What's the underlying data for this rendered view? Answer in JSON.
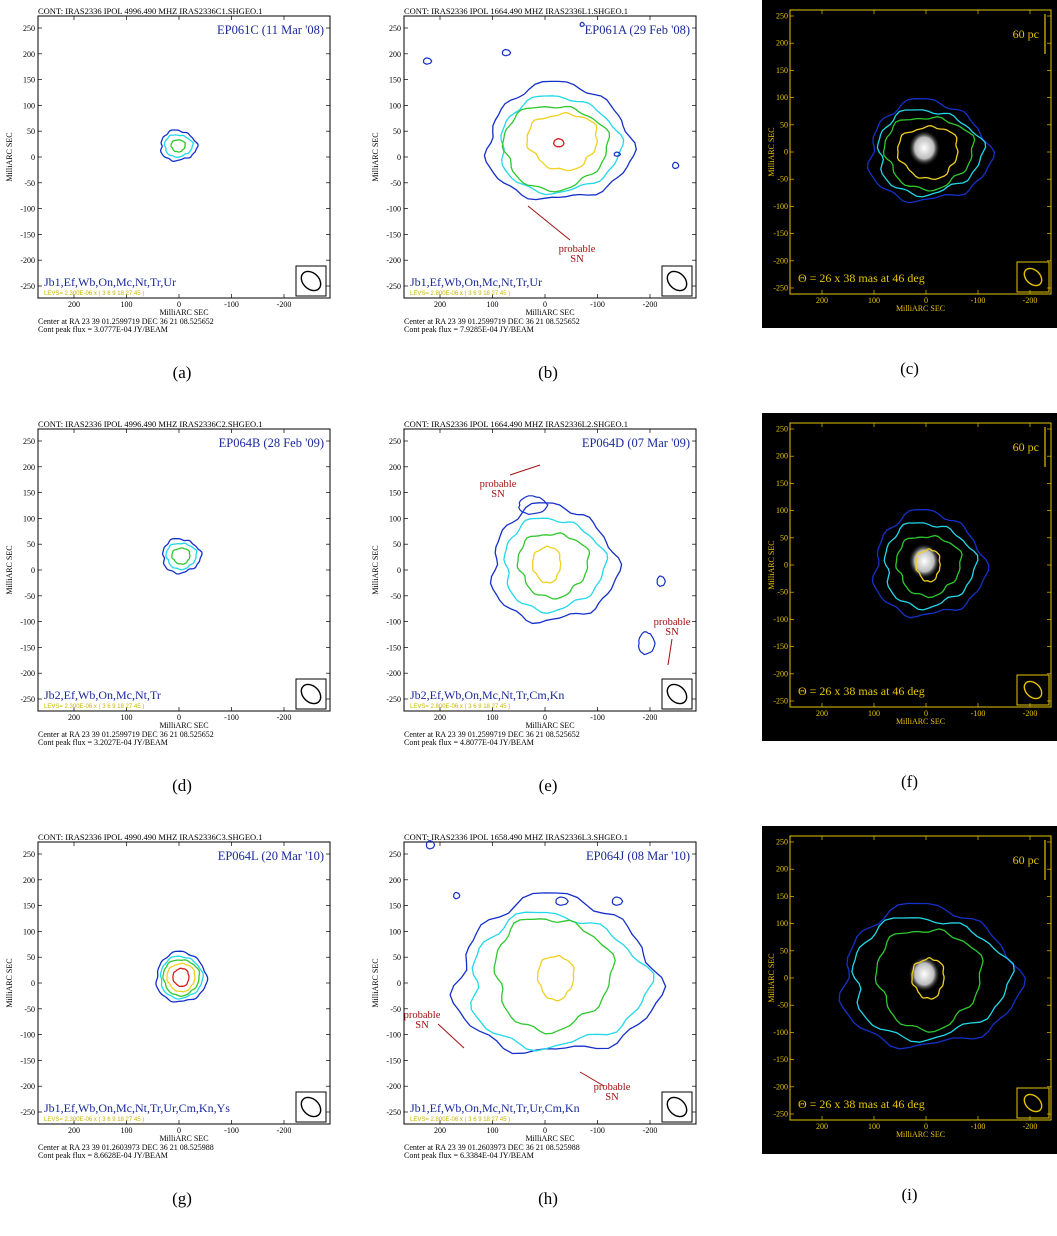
{
  "colors": {
    "contour_blue": "#1530c8",
    "contour_cyan": "#22d8e8",
    "contour_green": "#2ec82e",
    "contour_yellow": "#f0d020",
    "contour_red": "#d81c1c",
    "label_blue": "#1a2a9a",
    "annotation_red": "#a01010",
    "dark_frame": "#e6c300"
  },
  "common": {
    "xlabel": "MilliARC SEC",
    "ylabel": "MilliARC SEC",
    "xticks": [
      "200",
      "100",
      "0",
      "-100",
      "-200"
    ],
    "yticks": [
      "250",
      "200",
      "150",
      "100",
      "50",
      "0",
      "-50",
      "-100",
      "-150",
      "-200",
      "-250"
    ],
    "probable_sn": [
      "probable",
      "SN"
    ]
  },
  "panels": [
    {
      "id": "a",
      "caption": "(a)",
      "dark": false,
      "header": "CONT: IRAS2336  IPOL  4996.490 MHZ  IRAS2336C1.SHGEO.1",
      "obs": "EP061C (11 Mar '08)",
      "antennas": "Jb1,Ef,Wb,On,Mc,Nt,Tr,Ur",
      "levs": "LEVS= 2.300E-06 x ( 3   6   9   18   27   45 )",
      "center": "Center at RA 23 39 01.2599719  DEC 36 21 08.525652",
      "peak": "Cont peak flux =  3.0777E-04 JY/BEAM"
    },
    {
      "id": "b",
      "caption": "(b)",
      "dark": false,
      "header": "CONT: IRAS2336  IPOL  1664.490 MHZ  IRAS2336L1.SHGEO.1",
      "obs": "EP061A (29 Feb '08)",
      "antennas": "Jb1,Ef,Wb,On,Mc,Nt,Tr,Ur",
      "levs": "LEVS= 2.800E-06 x ( 3   6   9   18   27   45 )",
      "center": "Center at RA 23 39 01.2599719  DEC 36 21 08.525652",
      "peak": "Cont peak flux =  7.9285E-04 JY/BEAM"
    },
    {
      "id": "c",
      "caption": "(c)",
      "dark": true,
      "scale": "60 pc",
      "beam": "Θ = 26 x 38 mas at 46 deg"
    },
    {
      "id": "d",
      "caption": "(d)",
      "dark": false,
      "header": "CONT: IRAS2336  IPOL  4996.490 MHZ  IRAS2336C2.SHGEO.1",
      "obs": "EP064B (28 Feb '09)",
      "antennas": "Jb2,Ef,Wb,On,Mc,Nt,Tr",
      "levs": "LEVS= 2.300E-06 x ( 3   6   9   18   27   45 )",
      "center": "Center at RA 23 39 01.2599719  DEC 36 21 08.525652",
      "peak": "Cont peak flux =  3.2027E-04 JY/BEAM"
    },
    {
      "id": "e",
      "caption": "(e)",
      "dark": false,
      "header": "CONT: IRAS2336  IPOL  1664.490 MHZ  IRAS2336L2.SHGEO.1",
      "obs": "EP064D (07 Mar '09)",
      "antennas": "Jb2,Ef,Wb,On,Mc,Nt,Tr,Cm,Kn",
      "levs": "LEVS= 2.800E-06 x ( 3   6   9   18   27   45 )",
      "center": "Center at RA 23 39 01.2599719  DEC 36 21 08.525652",
      "peak": "Cont peak flux =  4.8077E-04 JY/BEAM"
    },
    {
      "id": "f",
      "caption": "(f)",
      "dark": true,
      "scale": "60 pc",
      "beam": "Θ = 26 x 38 mas at 46 deg"
    },
    {
      "id": "g",
      "caption": "(g)",
      "dark": false,
      "header": "CONT: IRAS2336  IPOL  4990.490 MHZ  IRAS2336C3.SHGEO.1",
      "obs": "EP064L (20 Mar '10)",
      "antennas": "Jb1,Ef,Wb,On,Mc,Nt,Tr,Ur,Cm,Kn,Ys",
      "levs": "LEVS= 2.300E-06 x ( 3   6   9   18   27   45 )",
      "center": "Center at RA 23 39 01.2603973  DEC 36 21 08.525988",
      "peak": "Cont peak flux =  8.6628E-04 JY/BEAM"
    },
    {
      "id": "h",
      "caption": "(h)",
      "dark": false,
      "header": "CONT: IRAS2336  IPOL  1658.490 MHZ  IRAS2336L3.SHGEO.1",
      "obs": "EP064J (08 Mar '10)",
      "antennas": "Jb1,Ef,Wb,On,Mc,Nt,Tr,Ur,Cm,Kn",
      "levs": "LEVS= 2.800E-06 x ( 3   6   9   18   27   45 )",
      "center": "Center at RA 23 39 01.2603973  DEC 36 21 08.525988",
      "peak": "Cont peak flux =  6.3384E-04 JY/BEAM"
    },
    {
      "id": "i",
      "caption": "(i)",
      "dark": true,
      "scale": "60 pc",
      "beam": "Θ = 26 x 38 mas at 46 deg"
    }
  ]
}
